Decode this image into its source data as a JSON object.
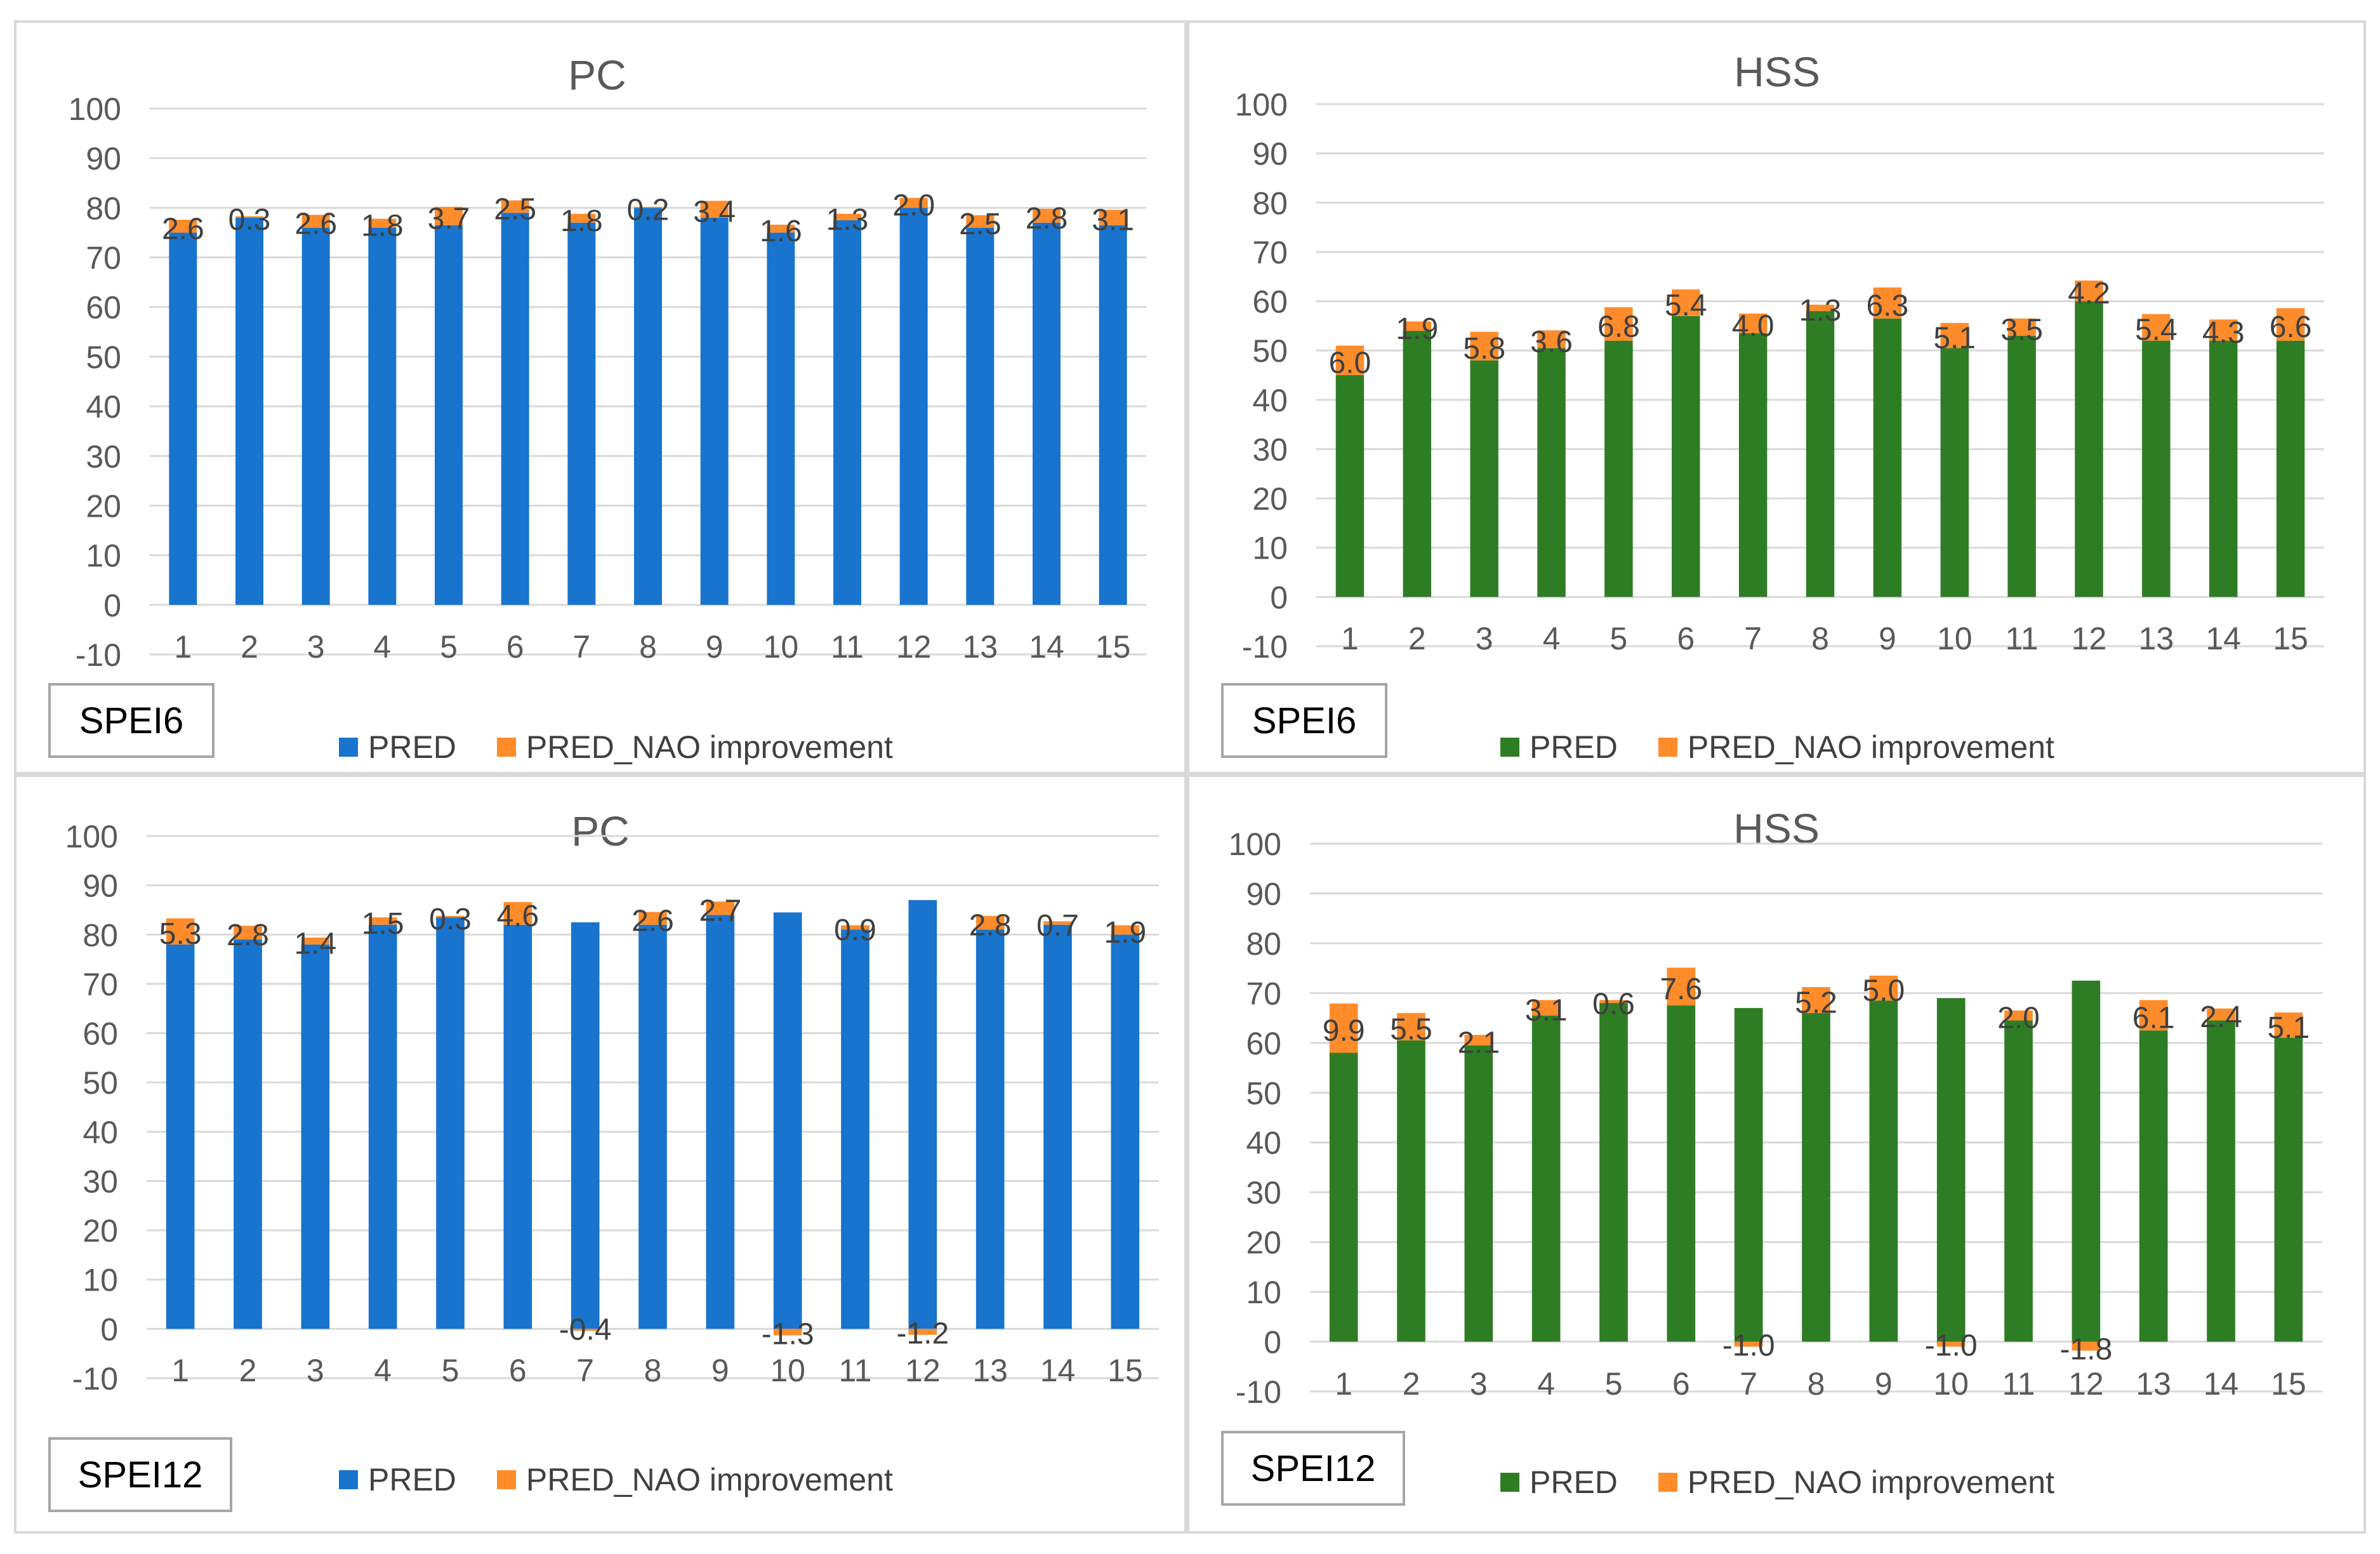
{
  "figure": {
    "colors": {
      "pc_bar": "#1874CD",
      "hss_bar": "#2E7D24",
      "improvement": "#FF8C2A",
      "grid": "#d9d9d9",
      "text": "#595959"
    }
  },
  "chart_data": [
    {
      "id": "pc-spei6",
      "type": "bar",
      "stacked": true,
      "title": "PC",
      "box_label": "SPEI6",
      "categories": [
        "1",
        "2",
        "3",
        "4",
        "5",
        "6",
        "7",
        "8",
        "9",
        "10",
        "11",
        "12",
        "13",
        "14",
        "15"
      ],
      "ylim": [
        -10,
        100
      ],
      "yticks": [
        "100",
        "90",
        "80",
        "70",
        "60",
        "50",
        "40",
        "30",
        "20",
        "10",
        "0",
        "-10"
      ],
      "series": [
        {
          "name": "PRED",
          "color": "#1874CD",
          "values": [
            75,
            78,
            76,
            76,
            76.5,
            79,
            77,
            80,
            78,
            75,
            77.5,
            80,
            76,
            77,
            76.5
          ]
        },
        {
          "name": "PRED_NAO improvement",
          "color": "#FF8C2A",
          "values": [
            2.6,
            0.3,
            2.6,
            1.8,
            3.7,
            2.5,
            1.8,
            0.2,
            3.4,
            1.6,
            1.3,
            2.0,
            2.5,
            2.8,
            3.1
          ]
        }
      ],
      "data_labels": [
        "2.6",
        "0.3",
        "2.6",
        "1.8",
        "3.7",
        "2.5",
        "1.8",
        "0.2",
        "3.4",
        "1.6",
        "1.3",
        "2.0",
        "2.5",
        "2.8",
        "3.1"
      ],
      "legend": [
        "PRED",
        "PRED_NAO improvement"
      ]
    },
    {
      "id": "hss-spei6",
      "type": "bar",
      "stacked": true,
      "title": "HSS",
      "box_label": "SPEI6",
      "categories": [
        "1",
        "2",
        "3",
        "4",
        "5",
        "6",
        "7",
        "8",
        "9",
        "10",
        "11",
        "12",
        "13",
        "14",
        "15"
      ],
      "ylim": [
        -10,
        100
      ],
      "yticks": [
        "100",
        "90",
        "80",
        "70",
        "60",
        "50",
        "40",
        "30",
        "20",
        "10",
        "0",
        "-10"
      ],
      "series": [
        {
          "name": "PRED",
          "color": "#2E7D24",
          "values": [
            45,
            54,
            48,
            50.5,
            52,
            57,
            53.5,
            58,
            56.5,
            50.5,
            53,
            60,
            52,
            52,
            52
          ]
        },
        {
          "name": "PRED_NAO improvement",
          "color": "#FF8C2A",
          "values": [
            6.0,
            1.9,
            5.8,
            3.6,
            6.8,
            5.4,
            4.0,
            1.3,
            6.3,
            5.1,
            3.5,
            4.2,
            5.4,
            4.3,
            6.6
          ]
        }
      ],
      "data_labels": [
        "6.0",
        "1.9",
        "5.8",
        "3.6",
        "6.8",
        "5.4",
        "4.0",
        "1.3",
        "6.3",
        "5.1",
        "3.5",
        "4.2",
        "5.4",
        "4.3",
        "6.6"
      ],
      "legend": [
        "PRED",
        "PRED_NAO improvement"
      ]
    },
    {
      "id": "pc-spei12",
      "type": "bar",
      "stacked": true,
      "title": "PC",
      "box_label": "SPEI12",
      "categories": [
        "1",
        "2",
        "3",
        "4",
        "5",
        "6",
        "7",
        "8",
        "9",
        "10",
        "11",
        "12",
        "13",
        "14",
        "15"
      ],
      "ylim": [
        -10,
        100
      ],
      "yticks": [
        "100",
        "90",
        "80",
        "70",
        "60",
        "50",
        "40",
        "30",
        "20",
        "10",
        "0",
        "-10"
      ],
      "series": [
        {
          "name": "PRED",
          "color": "#1874CD",
          "values": [
            78,
            79,
            78,
            82,
            83.5,
            82,
            82.5,
            82,
            84,
            84.5,
            81,
            87,
            81,
            82,
            80
          ]
        },
        {
          "name": "PRED_NAO improvement",
          "color": "#FF8C2A",
          "values": [
            5.3,
            2.8,
            1.4,
            1.5,
            0.3,
            4.6,
            -0.4,
            2.6,
            2.7,
            -1.3,
            0.9,
            -1.2,
            2.8,
            0.7,
            1.9
          ]
        }
      ],
      "data_labels": [
        "5.3",
        "2.8",
        "1.4",
        "1.5",
        "0.3",
        "4.6",
        "-0.4",
        "2.6",
        "2.7",
        "-1.3",
        "0.9",
        "-1.2",
        "2.8",
        "0.7",
        "1.9"
      ],
      "legend": [
        "PRED",
        "PRED_NAO improvement"
      ]
    },
    {
      "id": "hss-spei12",
      "type": "bar",
      "stacked": true,
      "title": "HSS",
      "box_label": "SPEI12",
      "categories": [
        "1",
        "2",
        "3",
        "4",
        "5",
        "6",
        "7",
        "8",
        "9",
        "10",
        "11",
        "12",
        "13",
        "14",
        "15"
      ],
      "ylim": [
        -10,
        100
      ],
      "yticks": [
        "100",
        "90",
        "80",
        "70",
        "60",
        "50",
        "40",
        "30",
        "20",
        "10",
        "0",
        "-10"
      ],
      "series": [
        {
          "name": "PRED",
          "color": "#2E7D24",
          "values": [
            58,
            60.5,
            59.5,
            65.5,
            68,
            67.5,
            67,
            66,
            68.5,
            69,
            64.5,
            72.5,
            62.5,
            64.5,
            61
          ]
        },
        {
          "name": "PRED_NAO improvement",
          "color": "#FF8C2A",
          "values": [
            9.9,
            5.5,
            2.1,
            3.1,
            0.6,
            7.6,
            -1.0,
            5.2,
            5.0,
            -1.0,
            2.0,
            -1.8,
            6.1,
            2.4,
            5.1
          ]
        }
      ],
      "data_labels": [
        "9.9",
        "5.5",
        "2.1",
        "3.1",
        "0.6",
        "7.6",
        "-1.0",
        "5.2",
        "5.0",
        "-1.0",
        "2.0",
        "-1.8",
        "6.1",
        "2.4",
        "5.1"
      ],
      "legend": [
        "PRED",
        "PRED_NAO improvement"
      ]
    }
  ]
}
